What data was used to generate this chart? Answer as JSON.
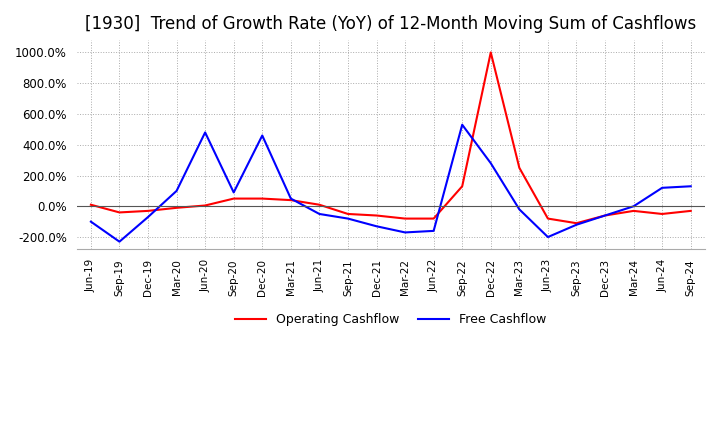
{
  "title": "[1930]  Trend of Growth Rate (YoY) of 12-Month Moving Sum of Cashflows",
  "title_fontsize": 12,
  "title_fontweight": "normal",
  "ylim": [
    -280,
    1080
  ],
  "yticks": [
    -200,
    0,
    200,
    400,
    600,
    800,
    1000
  ],
  "background_color": "#ffffff",
  "grid_color": "#aaaaaa",
  "legend_labels": [
    "Operating Cashflow",
    "Free Cashflow"
  ],
  "legend_colors": [
    "#ff0000",
    "#0000ff"
  ],
  "x_labels": [
    "Jun-19",
    "Sep-19",
    "Dec-19",
    "Mar-20",
    "Jun-20",
    "Sep-20",
    "Dec-20",
    "Mar-21",
    "Jun-21",
    "Sep-21",
    "Dec-21",
    "Mar-22",
    "Jun-22",
    "Sep-22",
    "Dec-22",
    "Mar-23",
    "Jun-23",
    "Sep-23",
    "Dec-23",
    "Mar-24",
    "Jun-24",
    "Sep-24"
  ],
  "operating_cashflow": [
    10,
    -40,
    -30,
    -10,
    5,
    50,
    50,
    40,
    10,
    -50,
    -60,
    -80,
    -80,
    130,
    1000,
    250,
    -80,
    -110,
    -60,
    -30,
    -50,
    -30
  ],
  "free_cashflow": [
    -100,
    -230,
    -70,
    100,
    480,
    90,
    460,
    50,
    -50,
    -80,
    -130,
    -170,
    -160,
    530,
    280,
    -20,
    -200,
    -120,
    -60,
    0,
    120,
    130
  ]
}
